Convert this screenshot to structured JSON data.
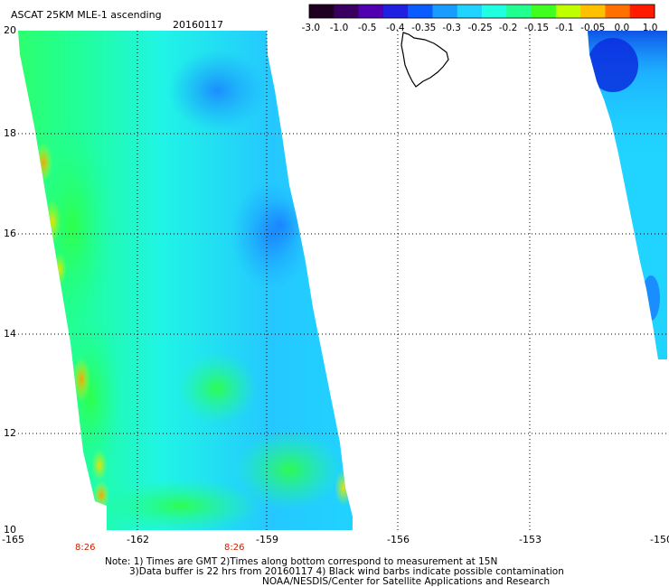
{
  "title": "ASCAT 25KM MLE-1 ascending",
  "date": "20160117",
  "colorbar": {
    "labels": [
      "-3.0",
      "-1.0",
      "-0.5",
      "-0.4",
      "-0.35",
      "-0.3",
      "-0.25",
      "-0.2",
      "-0.15",
      "-0.1",
      "-0.05",
      "0.0",
      "1.0"
    ],
    "colors": [
      "#200020",
      "#3a0060",
      "#5000b0",
      "#1f20e0",
      "#0a5cff",
      "#1a9cff",
      "#20d4ff",
      "#20ffe0",
      "#20ff90",
      "#40ff20",
      "#c0ff00",
      "#ffc000",
      "#ff7000",
      "#ff1a00"
    ]
  },
  "map": {
    "lat_labels": [
      "20",
      "18",
      "16",
      "14",
      "12",
      "10"
    ],
    "lon_labels": [
      "-165",
      "-162",
      "-159",
      "-156",
      "-153",
      "-150"
    ],
    "time_labels": [
      "8:26",
      "8:26"
    ]
  },
  "notes": [
    "Note: 1) Times are GMT 2)Times along bottom correspond to measurement at 15N",
    "3)Data buffer is 22 hrs from 20160117 4) Black wind barbs indicate possible contamination",
    "NOAA/NESDIS/Center for Satellite Applications and Research"
  ]
}
